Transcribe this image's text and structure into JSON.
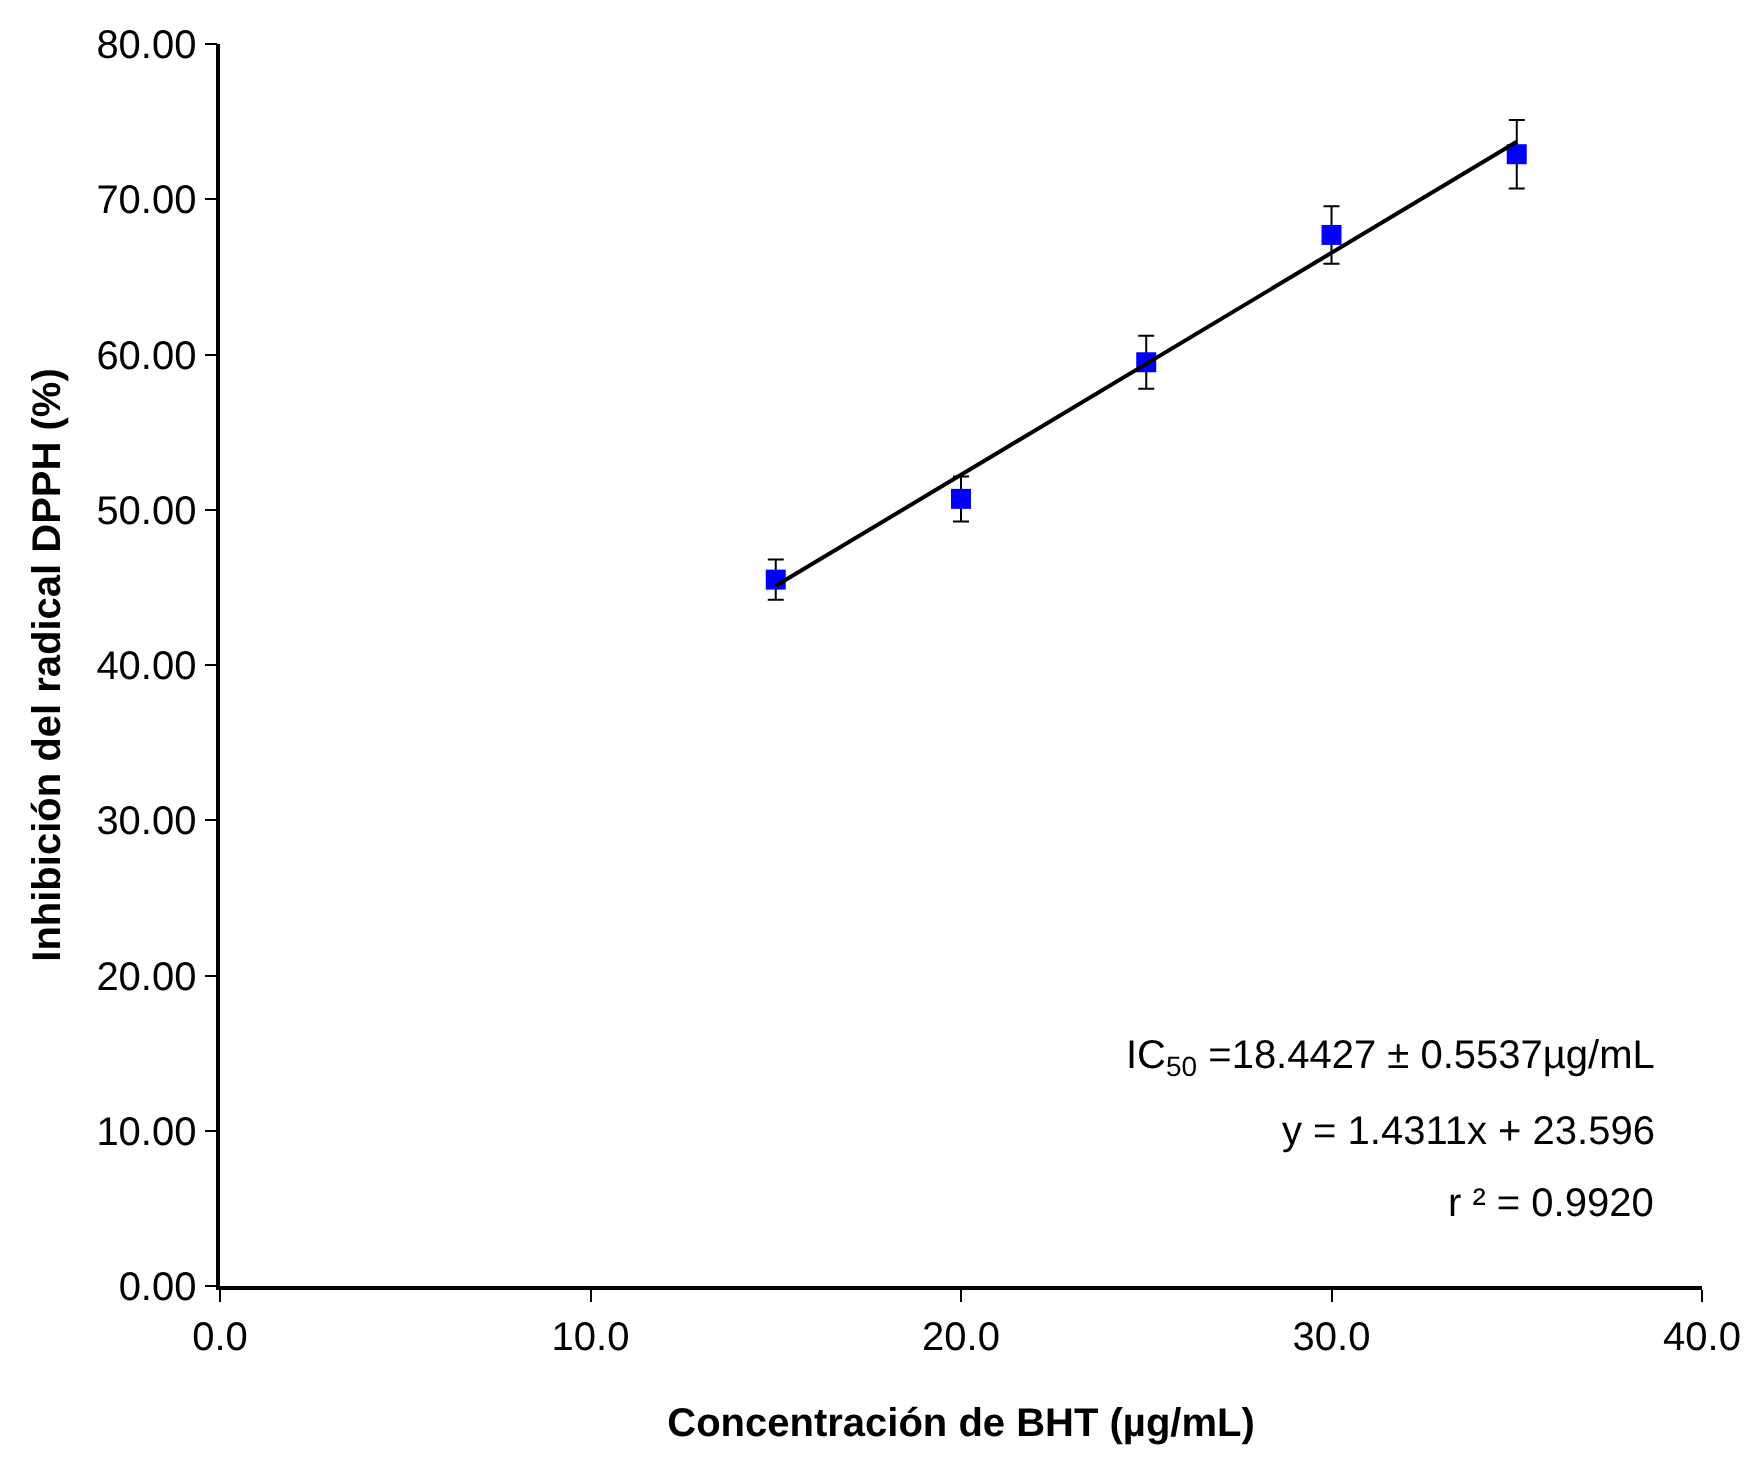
{
  "chart_data": {
    "type": "scatter",
    "xlabel": "Concentración de BHT (µg/mL)",
    "ylabel": "Inhibición del radical DPPH (%)",
    "xlim": [
      0,
      40
    ],
    "ylim": [
      0,
      80
    ],
    "xticks": [
      {
        "value": 0,
        "label": "0.0"
      },
      {
        "value": 10,
        "label": "10.0"
      },
      {
        "value": 20,
        "label": "20.0"
      },
      {
        "value": 30,
        "label": "30.0"
      },
      {
        "value": 40,
        "label": "40.0"
      }
    ],
    "yticks": [
      {
        "value": 0,
        "label": "0.00"
      },
      {
        "value": 10,
        "label": "10.00"
      },
      {
        "value": 20,
        "label": "20.00"
      },
      {
        "value": 30,
        "label": "30.00"
      },
      {
        "value": 40,
        "label": "40.00"
      },
      {
        "value": 50,
        "label": "50.00"
      },
      {
        "value": 60,
        "label": "60.00"
      },
      {
        "value": 70,
        "label": "70.00"
      },
      {
        "value": 80,
        "label": "80.00"
      }
    ],
    "series": [
      {
        "color": "#0000ff",
        "marker": "square",
        "x": [
          15,
          20,
          25,
          30,
          35
        ],
        "values": [
          45.5,
          50.7,
          59.5,
          67.7,
          72.9
        ],
        "errors": [
          1.3,
          1.45,
          1.7,
          1.85,
          2.2
        ]
      },
      {
        "type": "line",
        "color": "#000000",
        "marker": "none",
        "line_style": "solid",
        "x": [
          15,
          35
        ],
        "values": [
          45.1,
          73.7
        ]
      }
    ],
    "annotations": [
      "IC$_{50}$ =18.4427 ± 0.5537µg/mL",
      "y = 1.4311x + 23.596",
      "r ² = 0.9920"
    ]
  }
}
